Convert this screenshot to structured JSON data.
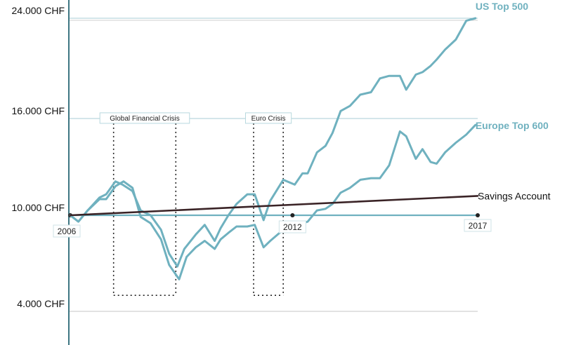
{
  "chart_data": {
    "type": "line",
    "x_range": [
      2006,
      2017
    ],
    "ylim": [
      0,
      24000
    ],
    "y_ticks": [
      {
        "value": 4000,
        "label": "4.000 CHF"
      },
      {
        "value": 10000,
        "label": "10.000 CHF"
      },
      {
        "value": 16000,
        "label": "16.000 CHF"
      },
      {
        "value": 24000,
        "label": "24.000 CHF"
      }
    ],
    "x_ticks": [
      {
        "value": 2006,
        "label": "2006"
      },
      {
        "value": 2012,
        "label": "2012"
      },
      {
        "value": 2017,
        "label": "2017"
      }
    ],
    "series": [
      {
        "name": "US Top 500",
        "color": "#6fb1bf",
        "x": [
          2006.0,
          2006.22,
          2006.47,
          2006.79,
          2006.97,
          2007.22,
          2007.41,
          2007.68,
          2007.9,
          2008.17,
          2008.45,
          2008.67,
          2008.89,
          2009.08,
          2009.39,
          2009.63,
          2009.9,
          2010.06,
          2010.27,
          2010.49,
          2010.78,
          2010.98,
          2011.22,
          2011.4,
          2011.75,
          2012.06,
          2012.27,
          2012.41,
          2012.66,
          2012.89,
          2013.08,
          2013.3,
          2013.55,
          2013.83,
          2014.12,
          2014.36,
          2014.61,
          2014.9,
          2015.07,
          2015.33,
          2015.51,
          2015.73,
          2015.89,
          2016.12,
          2016.41,
          2016.69,
          2016.94
        ],
        "values": [
          10000,
          9600,
          10300,
          11100,
          11300,
          12100,
          11900,
          11500,
          10300,
          10000,
          9100,
          7600,
          6800,
          7900,
          8800,
          9400,
          8400,
          9200,
          10000,
          10700,
          11300,
          11300,
          9700,
          10900,
          12200,
          11900,
          12600,
          12600,
          13900,
          14300,
          15100,
          16600,
          17000,
          17900,
          18100,
          19200,
          19400,
          19400,
          18300,
          19500,
          19700,
          20200,
          20700,
          21500,
          22300,
          23800,
          24000
        ]
      },
      {
        "name": "Europe Top 600",
        "color": "#6fb1bf",
        "x": [
          2006.0,
          2006.22,
          2006.47,
          2006.79,
          2006.97,
          2007.22,
          2007.44,
          2007.68,
          2007.9,
          2008.17,
          2008.45,
          2008.67,
          2008.94,
          2009.14,
          2009.39,
          2009.63,
          2009.9,
          2010.06,
          2010.27,
          2010.49,
          2010.78,
          2010.98,
          2011.22,
          2011.4,
          2011.75,
          2012.06,
          2012.27,
          2012.41,
          2012.66,
          2012.89,
          2013.08,
          2013.3,
          2013.55,
          2013.83,
          2014.12,
          2014.36,
          2014.61,
          2014.9,
          2015.07,
          2015.33,
          2015.51,
          2015.73,
          2015.89,
          2016.12,
          2016.41,
          2016.69,
          2016.94
        ],
        "values": [
          10000,
          9600,
          10300,
          11000,
          11000,
          11800,
          12100,
          11700,
          9900,
          9500,
          8500,
          6900,
          6000,
          7400,
          8000,
          8400,
          7900,
          8500,
          8900,
          9300,
          9300,
          9400,
          8000,
          8400,
          9100,
          9400,
          9500,
          9600,
          10300,
          10400,
          10700,
          11400,
          11700,
          12200,
          12300,
          12300,
          13100,
          15200,
          14900,
          13500,
          14100,
          13300,
          13200,
          13900,
          14500,
          15000,
          15600
        ]
      },
      {
        "name": "Savings Account",
        "color": "#3a2326",
        "x": [
          2006,
          2017
        ],
        "values": [
          10000,
          11200
        ]
      }
    ],
    "annotations": [
      {
        "label": "Global Financial Crisis",
        "x_start": 2007.17,
        "x_end": 2008.85
      },
      {
        "label": "Euro Crisis",
        "x_start": 2010.95,
        "x_end": 2011.75
      }
    ]
  }
}
